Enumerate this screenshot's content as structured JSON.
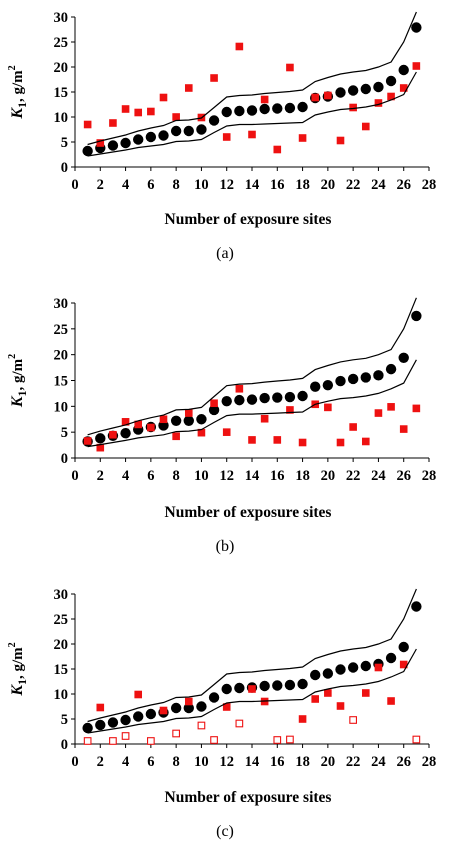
{
  "chart_data": [
    {
      "type": "scatter",
      "panel_label": "(a)",
      "xlabel": "Number of exposure sites",
      "ylabel": {
        "symbol": "K",
        "subscript": "1",
        "unit": ", g/m",
        "superscript": "2"
      },
      "xlim": [
        0,
        28
      ],
      "ylim": [
        0,
        30
      ],
      "xticks": [
        0,
        2,
        4,
        6,
        8,
        10,
        12,
        14,
        16,
        18,
        20,
        22,
        24,
        26,
        28
      ],
      "yticks": [
        0,
        5,
        10,
        15,
        20,
        25,
        30
      ],
      "grid": false,
      "marker_colors": {
        "black": "#000000",
        "red": "#ee1111"
      },
      "series": [
        {
          "marker": "black-circle",
          "x": [
            1,
            2,
            3,
            4,
            5,
            6,
            7,
            8,
            9,
            10,
            11,
            12,
            13,
            14,
            15,
            16,
            17,
            18,
            19,
            20,
            21,
            22,
            23,
            24,
            25,
            26,
            27
          ],
          "y": [
            3.2,
            3.8,
            4.3,
            4.8,
            5.5,
            6.0,
            6.3,
            7.2,
            7.2,
            7.5,
            9.3,
            11.0,
            11.2,
            11.3,
            11.6,
            11.7,
            11.8,
            12.0,
            13.8,
            14.1,
            14.9,
            15.3,
            15.6,
            16.0,
            17.2,
            19.4,
            27.9
          ]
        },
        {
          "marker": "red-square",
          "x": [
            1,
            2,
            3,
            4,
            5,
            6,
            7,
            8,
            9,
            10,
            11,
            12,
            13,
            14,
            15,
            16,
            17,
            18,
            19,
            20,
            21,
            22,
            23,
            24,
            25,
            26,
            27
          ],
          "y": [
            8.5,
            4.8,
            8.8,
            11.6,
            10.9,
            11.1,
            13.9,
            10.0,
            15.8,
            9.9,
            17.8,
            6.0,
            24.1,
            6.5,
            13.5,
            3.5,
            19.9,
            5.8,
            13.9,
            14.3,
            5.3,
            11.9,
            8.1,
            12.8,
            14.1,
            15.8,
            20.2
          ]
        },
        {
          "marker": "upper-band-line",
          "x": [
            1,
            2,
            3,
            4,
            5,
            6,
            7,
            8,
            9,
            10,
            11,
            12,
            13,
            14,
            15,
            16,
            17,
            18,
            19,
            20,
            21,
            22,
            23,
            24,
            25,
            26,
            27
          ],
          "y": [
            4.5,
            5.2,
            5.8,
            6.4,
            7.2,
            7.8,
            8.3,
            9.3,
            9.4,
            9.8,
            11.9,
            14.0,
            14.3,
            14.4,
            14.7,
            14.9,
            15.1,
            15.4,
            17.1,
            17.9,
            18.6,
            19.0,
            19.3,
            20.0,
            21.0,
            25.0,
            31.0
          ]
        },
        {
          "marker": "lower-band-line",
          "x": [
            1,
            2,
            3,
            4,
            5,
            6,
            7,
            8,
            9,
            10,
            11,
            12,
            13,
            14,
            15,
            16,
            17,
            18,
            19,
            20,
            21,
            22,
            23,
            24,
            25,
            26,
            27
          ],
          "y": [
            2.2,
            2.6,
            3.0,
            3.4,
            3.9,
            4.2,
            4.5,
            5.1,
            5.2,
            5.5,
            6.9,
            8.2,
            8.5,
            8.5,
            8.6,
            8.7,
            8.8,
            8.9,
            10.4,
            11.0,
            11.5,
            11.7,
            12.0,
            12.5,
            13.4,
            14.5,
            19.0
          ]
        }
      ]
    },
    {
      "type": "scatter",
      "panel_label": "(b)",
      "xlabel": "Number of exposure sites",
      "ylabel": {
        "symbol": "K",
        "subscript": "1",
        "unit": ", g/m",
        "superscript": "2"
      },
      "xlim": [
        0,
        28
      ],
      "ylim": [
        0,
        30
      ],
      "xticks": [
        0,
        2,
        4,
        6,
        8,
        10,
        12,
        14,
        16,
        18,
        20,
        22,
        24,
        26,
        28
      ],
      "yticks": [
        0,
        5,
        10,
        15,
        20,
        25,
        30
      ],
      "grid": false,
      "marker_colors": {
        "black": "#000000",
        "red": "#ee1111"
      },
      "series": [
        {
          "marker": "black-circle",
          "x": [
            1,
            2,
            3,
            4,
            5,
            6,
            7,
            8,
            9,
            10,
            11,
            12,
            13,
            14,
            15,
            16,
            17,
            18,
            19,
            20,
            21,
            22,
            23,
            24,
            25,
            26,
            27
          ],
          "y": [
            3.2,
            3.8,
            4.3,
            4.8,
            5.5,
            6.0,
            6.3,
            7.2,
            7.2,
            7.5,
            9.3,
            11.0,
            11.2,
            11.3,
            11.6,
            11.7,
            11.8,
            12.0,
            13.8,
            14.1,
            14.9,
            15.3,
            15.6,
            16.0,
            17.2,
            19.4,
            27.5
          ]
        },
        {
          "marker": "red-square",
          "x": [
            1,
            2,
            3,
            4,
            5,
            6,
            7,
            8,
            9,
            10,
            11,
            12,
            13,
            14,
            15,
            16,
            17,
            18,
            19,
            20,
            21,
            22,
            23,
            24,
            25,
            26,
            27
          ],
          "y": [
            3.3,
            2.0,
            4.5,
            7.0,
            6.5,
            5.9,
            7.5,
            4.2,
            8.7,
            4.9,
            10.6,
            5.0,
            13.4,
            3.5,
            7.6,
            3.5,
            9.3,
            3.0,
            10.4,
            9.8,
            3.0,
            6.0,
            3.2,
            8.7,
            9.9,
            5.6,
            9.6
          ]
        },
        {
          "marker": "upper-band-line",
          "x": [
            1,
            2,
            3,
            4,
            5,
            6,
            7,
            8,
            9,
            10,
            11,
            12,
            13,
            14,
            15,
            16,
            17,
            18,
            19,
            20,
            21,
            22,
            23,
            24,
            25,
            26,
            27
          ],
          "y": [
            4.5,
            5.2,
            5.8,
            6.4,
            7.2,
            7.8,
            8.3,
            9.3,
            9.4,
            9.8,
            11.9,
            14.0,
            14.3,
            14.4,
            14.7,
            14.9,
            15.1,
            15.4,
            17.1,
            17.9,
            18.6,
            19.0,
            19.3,
            20.0,
            21.0,
            25.0,
            31.0
          ]
        },
        {
          "marker": "lower-band-line",
          "x": [
            1,
            2,
            3,
            4,
            5,
            6,
            7,
            8,
            9,
            10,
            11,
            12,
            13,
            14,
            15,
            16,
            17,
            18,
            19,
            20,
            21,
            22,
            23,
            24,
            25,
            26,
            27
          ],
          "y": [
            2.2,
            2.6,
            3.0,
            3.4,
            3.9,
            4.2,
            4.5,
            5.1,
            5.2,
            5.5,
            6.9,
            8.2,
            8.5,
            8.5,
            8.6,
            8.7,
            8.8,
            8.9,
            10.4,
            11.0,
            11.5,
            11.7,
            12.0,
            12.5,
            13.4,
            14.5,
            19.0
          ]
        }
      ]
    },
    {
      "type": "scatter",
      "panel_label": "(c)",
      "xlabel": "Number of exposure sites",
      "ylabel": {
        "symbol": "K",
        "subscript": "1",
        "unit": ", g/m",
        "superscript": "2"
      },
      "xlim": [
        0,
        28
      ],
      "ylim": [
        0,
        30
      ],
      "xticks": [
        0,
        2,
        4,
        6,
        8,
        10,
        12,
        14,
        16,
        18,
        20,
        22,
        24,
        26,
        28
      ],
      "yticks": [
        0,
        5,
        10,
        15,
        20,
        25,
        30
      ],
      "grid": false,
      "marker_colors": {
        "black": "#000000",
        "red": "#ee1111"
      },
      "series": [
        {
          "marker": "black-circle",
          "x": [
            1,
            2,
            3,
            4,
            5,
            6,
            7,
            8,
            9,
            10,
            11,
            12,
            13,
            14,
            15,
            16,
            17,
            18,
            19,
            20,
            21,
            22,
            23,
            24,
            25,
            26,
            27
          ],
          "y": [
            3.2,
            3.8,
            4.3,
            4.8,
            5.5,
            6.0,
            6.3,
            7.2,
            7.2,
            7.5,
            9.3,
            11.0,
            11.2,
            11.3,
            11.6,
            11.7,
            11.8,
            12.0,
            13.8,
            14.1,
            14.9,
            15.3,
            15.6,
            16.0,
            17.2,
            19.4,
            27.5
          ]
        },
        {
          "marker": "red-square",
          "x": [
            2,
            5,
            7,
            9,
            12,
            14,
            15,
            18,
            19,
            20,
            21,
            23,
            24,
            25,
            26
          ],
          "y": [
            7.3,
            9.9,
            6.7,
            8.5,
            7.4,
            11.0,
            8.5,
            5.0,
            9.0,
            10.2,
            7.6,
            10.2,
            15.3,
            8.6,
            15.9
          ]
        },
        {
          "marker": "red-open-square",
          "x": [
            1,
            3,
            4,
            6,
            8,
            10,
            11,
            13,
            16,
            17,
            22,
            27
          ],
          "y": [
            0.6,
            0.6,
            1.6,
            0.6,
            2.1,
            3.7,
            0.8,
            4.1,
            0.8,
            0.9,
            4.8,
            0.9
          ]
        },
        {
          "marker": "upper-band-line",
          "x": [
            1,
            2,
            3,
            4,
            5,
            6,
            7,
            8,
            9,
            10,
            11,
            12,
            13,
            14,
            15,
            16,
            17,
            18,
            19,
            20,
            21,
            22,
            23,
            24,
            25,
            26,
            27
          ],
          "y": [
            4.5,
            5.2,
            5.8,
            6.4,
            7.2,
            7.8,
            8.3,
            9.3,
            9.4,
            9.8,
            11.9,
            14.0,
            14.3,
            14.4,
            14.7,
            14.9,
            15.1,
            15.4,
            17.1,
            17.9,
            18.6,
            19.0,
            19.3,
            20.0,
            21.0,
            25.0,
            31.0
          ]
        },
        {
          "marker": "lower-band-line",
          "x": [
            1,
            2,
            3,
            4,
            5,
            6,
            7,
            8,
            9,
            10,
            11,
            12,
            13,
            14,
            15,
            16,
            17,
            18,
            19,
            20,
            21,
            22,
            23,
            24,
            25,
            26,
            27
          ],
          "y": [
            2.2,
            2.6,
            3.0,
            3.4,
            3.9,
            4.2,
            4.5,
            5.1,
            5.2,
            5.5,
            6.9,
            8.2,
            8.5,
            8.5,
            8.6,
            8.7,
            8.8,
            8.9,
            10.4,
            11.0,
            11.5,
            11.7,
            12.0,
            12.5,
            13.4,
            14.5,
            19.0
          ]
        }
      ]
    }
  ]
}
